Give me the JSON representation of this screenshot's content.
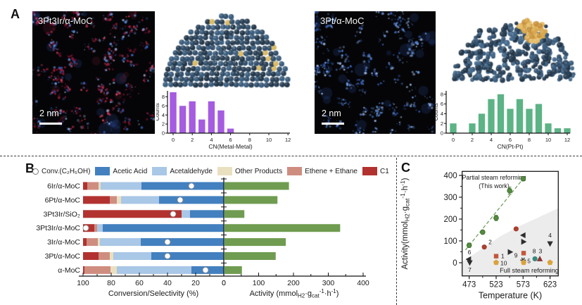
{
  "panelA": {
    "label": "A",
    "left_image": {
      "label": "3Pt3Ir/α-MoC",
      "scale_bar": "2 nm"
    },
    "right_image": {
      "label": "3Pt/α-MoC",
      "scale_bar": "2 nm"
    }
  },
  "panelB": {
    "label": "B"
  },
  "panelC": {
    "label": "C"
  },
  "chart_data": [
    {
      "id": "cn_metal_metal_hist",
      "type": "bar",
      "xlabel": "CN(Metal-Metal)",
      "ylabel": "Counts",
      "categories": [
        0,
        1,
        2,
        3,
        4,
        5,
        6,
        7,
        8,
        9,
        10,
        11,
        12
      ],
      "values": [
        9,
        6,
        7,
        3,
        7,
        5,
        1,
        0,
        0,
        0,
        0,
        0,
        0
      ],
      "xticks": [
        0,
        2,
        4,
        6,
        8,
        10,
        12
      ],
      "yticks": [
        0,
        2,
        4,
        6,
        8
      ],
      "ylim": [
        0,
        9.2
      ],
      "bar_color": "#a55ce0"
    },
    {
      "id": "cn_pt_pt_hist",
      "type": "bar",
      "xlabel": "CN(Pt-Pt)",
      "ylabel": "Counts",
      "categories": [
        0,
        1,
        2,
        3,
        4,
        5,
        6,
        7,
        8,
        9,
        10,
        11,
        12
      ],
      "values": [
        2,
        0,
        2,
        4,
        7,
        8,
        5,
        7,
        5,
        6,
        2,
        1,
        1
      ],
      "xticks": [
        0,
        2,
        4,
        6,
        8,
        10,
        12
      ],
      "yticks": [
        0,
        2,
        4,
        6,
        8
      ],
      "ylim": [
        0,
        8.8
      ],
      "bar_color": "#5cb385"
    },
    {
      "id": "conversion_selectivity_activity",
      "type": "bar",
      "orientation": "horizontal-stacked",
      "legend": {
        "conversion_label": "Conv.(C₂H₅OH)",
        "series": [
          {
            "key": "acetic",
            "label": "Acetic Acid",
            "color": "#4380bf"
          },
          {
            "key": "acetaldehyde",
            "label": "Acetaldehyde",
            "color": "#a9c7e6"
          },
          {
            "key": "other",
            "label": "Other Products",
            "color": "#e9e0c0"
          },
          {
            "key": "ethene",
            "label": "Ethene + Ethane",
            "color": "#cf8d80"
          },
          {
            "key": "c1",
            "label": "C1",
            "color": "#b23230"
          }
        ]
      },
      "stack_order": [
        "c1",
        "ethene",
        "other",
        "acetaldehyde",
        "acetic"
      ],
      "rows": [
        {
          "label": "6Ir/α-MoC",
          "c1": 3,
          "ethene": 8,
          "other": 1.5,
          "acetaldehyde": 29,
          "acetic": 58.5,
          "conversion": 23,
          "activity": 185
        },
        {
          "label": "6Pt/α-MoC",
          "c1": 19,
          "ethene": 5,
          "other": 3,
          "acetaldehyde": 27,
          "acetic": 46,
          "conversion": 31,
          "activity": 152
        },
        {
          "label": "3Pt3Ir/SiO₂",
          "c1": 70,
          "ethene": 0,
          "other": 0,
          "acetaldehyde": 6,
          "acetic": 24,
          "conversion": 36,
          "activity": 57
        },
        {
          "label": "3Pt3Ir/α-MoC",
          "c1": 8,
          "ethene": 2,
          "other": 0,
          "acetaldehyde": 4,
          "acetic": 86,
          "conversion": 98,
          "activity": 332
        },
        {
          "label": "3Ir/α-MoC",
          "c1": 2.5,
          "ethene": 8,
          "other": 1.5,
          "acetaldehyde": 29,
          "acetic": 59,
          "conversion": 40,
          "activity": 176
        },
        {
          "label": "3Pt/α-MoC",
          "c1": 11,
          "ethene": 8,
          "other": 2.5,
          "acetaldehyde": 27,
          "acetic": 51.5,
          "conversion": 40,
          "activity": 147
        },
        {
          "label": "α-MoC",
          "c1": 1,
          "ethene": 18.5,
          "other": 4.5,
          "acetaldehyde": 53,
          "acetic": 23,
          "conversion": 13,
          "activity": 50
        }
      ],
      "left_axis": {
        "label": "Conversion/Selectivity (%)",
        "ticks": [
          100,
          80,
          60,
          40,
          20,
          0
        ],
        "max": 100
      },
      "right_axis": {
        "label_parts": [
          {
            "t": "Activity (mmol"
          },
          {
            "t": "H2",
            "sub": true
          },
          {
            "t": "·g"
          },
          {
            "t": "cat",
            "sub": true
          },
          {
            "t": "-1",
            "sup": true
          },
          {
            "t": "·h"
          },
          {
            "t": "-1",
            "sup": true
          },
          {
            "t": ")"
          }
        ],
        "ticks": [
          0,
          100,
          200,
          300,
          400
        ],
        "max": 400
      },
      "activity_color": "#6f9c50",
      "conversion_marker_color": "#ffffff"
    },
    {
      "id": "activity_vs_temperature",
      "type": "scatter",
      "xlabel": "Temperature (K)",
      "ylabel_parts": [
        {
          "t": "Activity(mmol"
        },
        {
          "t": "H2",
          "sub": true
        },
        {
          "t": "·g"
        },
        {
          "t": "cat",
          "sub": true
        },
        {
          "t": "-1",
          "sup": true
        },
        {
          "t": "·h"
        },
        {
          "t": "-1",
          "sup": true
        },
        {
          "t": ")"
        }
      ],
      "xticks": [
        473,
        523,
        573,
        623
      ],
      "xminor": [
        498,
        548,
        598
      ],
      "yticks": [
        0,
        100,
        200,
        300,
        400
      ],
      "yminor": [
        50,
        150,
        250,
        350
      ],
      "xlim": [
        460,
        638
      ],
      "ylim": [
        -60,
        418
      ],
      "annotations": {
        "partial": "Partial steam reforming",
        "this_work": "(This work)",
        "full": "Full steam reforming"
      },
      "this_work_series": {
        "name": "Partial steam reforming (This work)",
        "marker": "circle",
        "color": "#538b3f",
        "x": [
          473,
          498,
          523,
          548,
          573
        ],
        "y": [
          80,
          140,
          205,
          330,
          385
        ],
        "yerr": [
          10,
          8,
          12,
          16,
          10
        ],
        "trend_dashed": true
      },
      "reference_points": [
        {
          "label": "1",
          "marker": "square",
          "color": "#c2563a",
          "T": 523,
          "A": 30,
          "lx": 7,
          "ly": 3,
          "la": "start"
        },
        {
          "label": "2",
          "marker": "circle",
          "color": "#a7402e",
          "T": 501,
          "A": 72,
          "lx": 6,
          "ly": -4,
          "la": "start"
        },
        {
          "marker": "circle",
          "color": "#a7402e",
          "T": 560,
          "A": 155
        },
        {
          "label": "3",
          "marker": "triangle-up",
          "color": "#8e3434",
          "T": 604,
          "A": 18,
          "lx": 1,
          "ly": -8
        },
        {
          "label": "4",
          "marker": "triangle-down",
          "color": "#2e2e2e",
          "T": 623,
          "A": 87,
          "lx": 0,
          "ly": -9
        },
        {
          "label": "5",
          "marker": "star",
          "color": "#2e2e2e",
          "T": 573,
          "A": 12,
          "lx": 6,
          "ly": 4,
          "la": "start"
        },
        {
          "label": "6",
          "marker": "triangle-left",
          "color": "#2e2e2e",
          "T": 472,
          "A": 16,
          "lx": 1,
          "ly": -7
        },
        {
          "label": "7",
          "marker": "triangle-down",
          "color": "#2e2e2e",
          "T": 474,
          "A": 0,
          "lx": 0,
          "ly": 13
        },
        {
          "label": "8",
          "marker": "circle",
          "color": "#35897b",
          "T": 595,
          "A": 18,
          "lx": -1,
          "ly": -8
        },
        {
          "label": "9",
          "marker": "square",
          "color": "#c2563a",
          "T": 574,
          "A": 44,
          "lx": -11,
          "ly": 6
        },
        {
          "label": "10",
          "marker": "pentagon",
          "color": "#d9a33b",
          "T": 523,
          "A": 1,
          "lx": 6,
          "ly": 4,
          "la": "start"
        },
        {
          "marker": "pentagon",
          "color": "#d9a33b",
          "T": 574,
          "A": 1
        },
        {
          "marker": "pentagon",
          "color": "#d9a33b",
          "T": 623,
          "A": 1
        },
        {
          "marker": "triangle-left",
          "color": "#2e2e2e",
          "T": 573,
          "A": 126
        },
        {
          "marker": "triangle-right",
          "color": "#2e2e2e",
          "T": 549,
          "A": 49
        },
        {
          "marker": "triangle-right",
          "color": "#2e2e2e",
          "T": 574,
          "A": 96
        }
      ],
      "region": {
        "label": "Full steam reforming",
        "fill": "#ececec"
      }
    }
  ]
}
